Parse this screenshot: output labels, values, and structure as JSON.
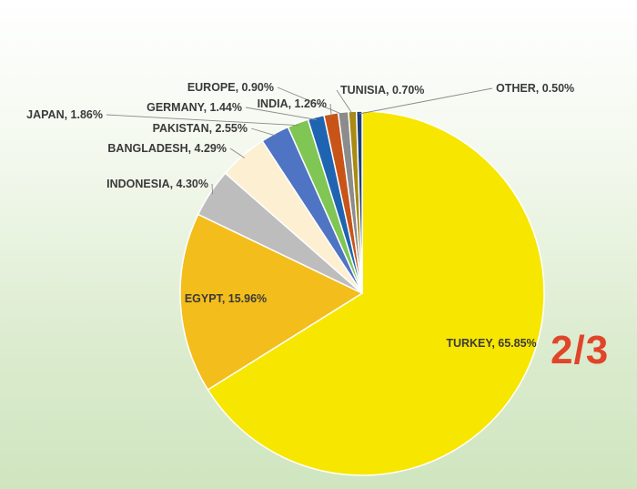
{
  "chart_data": {
    "type": "pie",
    "title": "",
    "slices": [
      {
        "label": "TURKEY",
        "value": 65.85,
        "display": "TURKEY, 65.85%",
        "color": "#f7e600"
      },
      {
        "label": "EGYPT",
        "value": 15.96,
        "display": "EGYPT, 15.96%",
        "color": "#f3bd1b"
      },
      {
        "label": "INDONESIA",
        "value": 4.3,
        "display": "INDONESIA, 4.30%",
        "color": "#bdbdbd"
      },
      {
        "label": "BANGLADESH",
        "value": 4.29,
        "display": "BANGLADESH, 4.29%",
        "color": "#fcefd2"
      },
      {
        "label": "PAKISTAN",
        "value": 2.55,
        "display": "PAKISTAN, 2.55%",
        "color": "#4f74c4"
      },
      {
        "label": "JAPAN",
        "value": 1.86,
        "display": "JAPAN, 1.86%",
        "color": "#7fc655"
      },
      {
        "label": "GERMANY",
        "value": 1.44,
        "display": "GERMANY, 1.44%",
        "color": "#1f64b0"
      },
      {
        "label": "INDIA",
        "value": 1.26,
        "display": "INDIA, 1.26%",
        "color": "#c85418"
      },
      {
        "label": "EUROPE",
        "value": 0.9,
        "display": "EUROPE, 0.90%",
        "color": "#8c8c8c"
      },
      {
        "label": "TUNISIA",
        "value": 0.7,
        "display": "TUNISIA, 0.70%",
        "color": "#a98a12"
      },
      {
        "label": "OTHER",
        "value": 0.5,
        "display": "OTHER, 0.50%",
        "color": "#1c3f7a"
      }
    ],
    "annotation": "2/3"
  }
}
